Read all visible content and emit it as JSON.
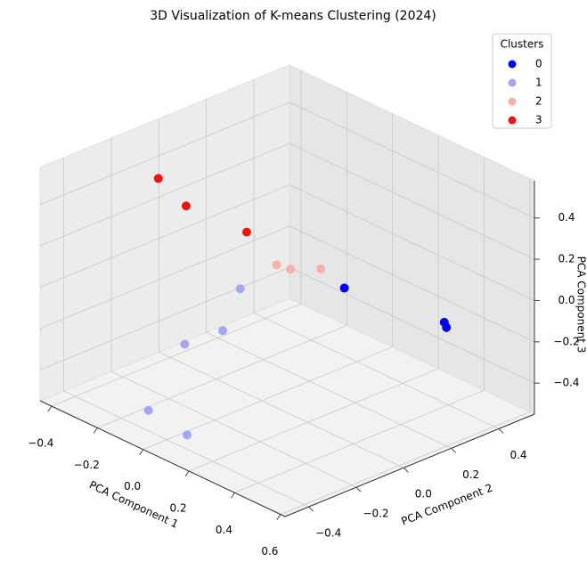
{
  "chart_data": {
    "type": "scatter3d",
    "title": "3D Visualization of K-means Clustering (2024)",
    "x_label": "PCA Component 1",
    "y_label": "PCA Component 2",
    "z_label": "PCA Component 3",
    "xlim": [
      -0.45,
      0.62
    ],
    "ylim": [
      -0.5,
      0.55
    ],
    "zlim": [
      -0.55,
      0.58
    ],
    "xticks": [
      {
        "value": -0.4,
        "label": "−0.4"
      },
      {
        "value": -0.2,
        "label": "−0.2"
      },
      {
        "value": 0,
        "label": "0.0"
      },
      0.2,
      0.4,
      0.6
    ],
    "yticks": [
      {
        "value": -0.4,
        "label": "−0.4"
      },
      {
        "value": -0.2,
        "label": "−0.2"
      },
      {
        "value": 0,
        "label": "0.0"
      },
      0.2,
      0.4
    ],
    "zticks": [
      {
        "value": -0.4,
        "label": "−0.4"
      },
      {
        "value": -0.2,
        "label": "−0.2"
      },
      {
        "value": 0,
        "label": "0.0"
      },
      0.2,
      0.4
    ],
    "grid": true,
    "legend_title": "Clusters",
    "legend": "upper right",
    "series": [
      {
        "name": "0",
        "color": "#0000ff",
        "x": [
          0.07,
          0.33,
          0.36
        ],
        "y": [
          0.28,
          0.45,
          0.43
        ],
        "z": [
          -0.1,
          -0.21,
          -0.21
        ]
      },
      {
        "name": "1",
        "color": "#a6a6f7",
        "x": [
          -0.25,
          -0.15,
          -0.14,
          -0.07,
          0.13
        ],
        "y": [
          0.15,
          -0.18,
          -0.03,
          -0.41,
          -0.44
        ],
        "z": [
          -0.21,
          -0.27,
          -0.27,
          -0.44,
          -0.44
        ]
      },
      {
        "name": "2",
        "color": "#f7b0ac",
        "x": [
          -0.06,
          -0.01,
          0.05
        ],
        "y": [
          0.12,
          0.13,
          0.2
        ],
        "z": [
          0.02,
          0.02,
          0.02
        ]
      },
      {
        "name": "3",
        "color": "#ee1414",
        "x": [
          -0.39,
          -0.31,
          -0.17
        ],
        "y": [
          -0.06,
          -0.02,
          0.1
        ],
        "z": [
          0.35,
          0.24,
          0.13
        ]
      }
    ]
  }
}
